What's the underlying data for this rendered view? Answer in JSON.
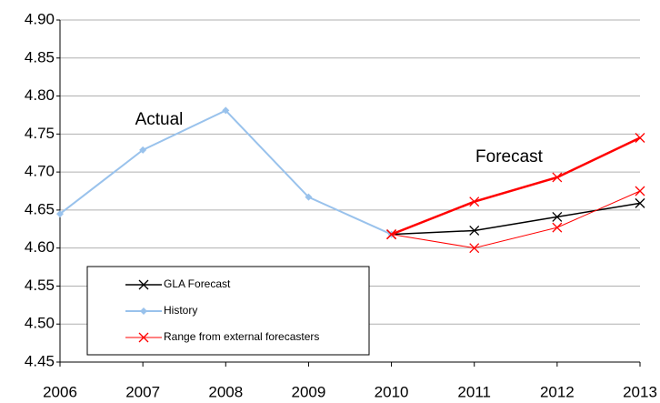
{
  "chart_data": {
    "type": "line",
    "x": [
      2006,
      2007,
      2008,
      2009,
      2010,
      2011,
      2012,
      2013
    ],
    "xlim": [
      2006,
      2013
    ],
    "xticks": [
      2006,
      2007,
      2008,
      2009,
      2010,
      2011,
      2012,
      2013
    ],
    "ylim": [
      4.45,
      4.9
    ],
    "yticks": [
      {
        "value": 4.45,
        "label": "4.45"
      },
      {
        "value": 4.5,
        "label": "4.50"
      },
      {
        "value": 4.55,
        "label": "4.55"
      },
      {
        "value": 4.6,
        "label": "4.60"
      },
      {
        "value": 4.65,
        "label": "4.65"
      },
      {
        "value": 4.7,
        "label": "4.70"
      },
      {
        "value": 4.75,
        "label": "4.75"
      },
      {
        "value": 4.8,
        "label": "4.80"
      },
      {
        "value": 4.85,
        "label": "4.85"
      },
      {
        "value": 4.9,
        "label": "4.90"
      }
    ],
    "grid": true,
    "annotations": [
      "Actual",
      "Forecast"
    ],
    "series": [
      {
        "name": "GLA Forecast",
        "color": "#000000",
        "marker": "x",
        "width": 1.5,
        "values": [
          null,
          null,
          null,
          null,
          4.618,
          4.623,
          4.641,
          4.659
        ]
      },
      {
        "name": "History",
        "color": "#99c2ec",
        "marker": "diamond",
        "width": 2,
        "values": [
          4.645,
          4.729,
          4.781,
          4.667,
          4.618,
          null,
          null,
          null
        ]
      },
      {
        "name": "Range from external forecasters",
        "color": "#ff0000",
        "marker": "x",
        "width": 1,
        "values": [
          null,
          null,
          null,
          null,
          4.618,
          4.6,
          4.627,
          4.675
        ]
      },
      {
        "color": "#ff0000",
        "marker": "x",
        "width": 2.5,
        "values": [
          null,
          null,
          null,
          null,
          4.618,
          4.661,
          4.693,
          4.745
        ]
      }
    ]
  }
}
